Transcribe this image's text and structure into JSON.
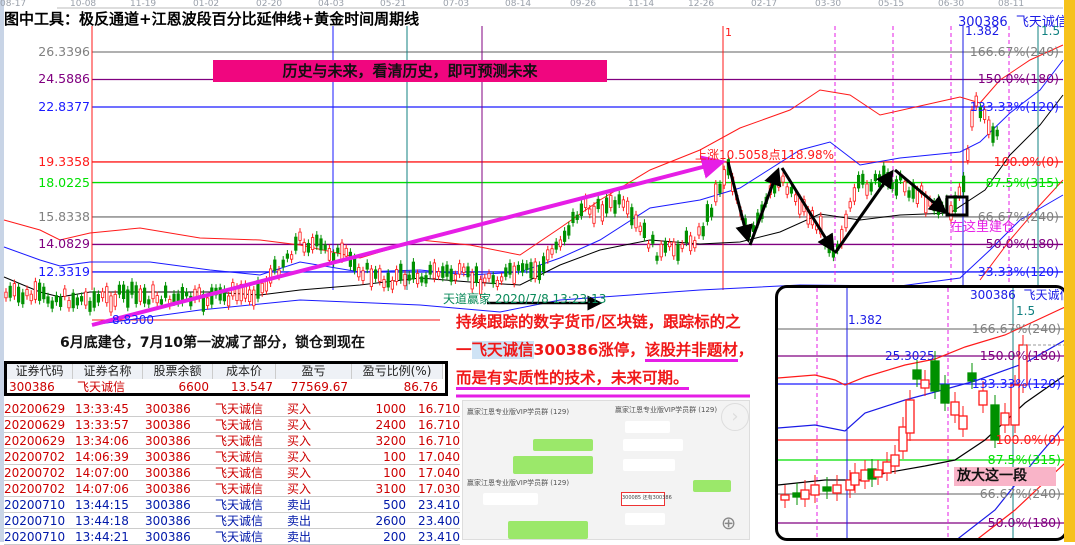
{
  "title": "图中工具：极反通道+江恩波段百分比延伸线+黄金时间周期线",
  "stock": {
    "code": "300386",
    "name": "飞天诚信",
    "color": "#1a1ae6"
  },
  "date_axis": [
    "08-17",
    "10-08",
    "11-19",
    "01-02",
    "02-20",
    "04-03",
    "05-21",
    "07-03",
    "08-14",
    "09-26",
    "11-14",
    "12-26",
    "02-17",
    "03-30",
    "05-15",
    "06-30",
    "08-11"
  ],
  "price_levels": [
    {
      "price": "26.3396",
      "pct": "166.67%(240)",
      "color": "#808080"
    },
    {
      "price": "24.5886",
      "pct": "150.0%(180)",
      "color": "#800080"
    },
    {
      "price": "22.8377",
      "pct": "133.33%(120)",
      "color": "#1a1aff"
    },
    {
      "price": "19.3358",
      "pct": "100.0%(0)",
      "color": "#ff1a1a"
    },
    {
      "price": "18.0225",
      "pct": "87.5%(315)",
      "color": "#00e000"
    },
    {
      "price": "15.8338",
      "pct": "66.67%(240)",
      "color": "#808080"
    },
    {
      "price": "14.0829",
      "pct": "50.0%(180)",
      "color": "#800080"
    },
    {
      "price": "12.3319",
      "pct": "33.33%(120)",
      "color": "#1a1aff"
    }
  ],
  "annotations": {
    "banner": "历史与未来，看清历史，即可预测未来",
    "rise": "上涨10.5058点118.98%",
    "low": "8.8300",
    "cycle1": "1",
    "cycle_1382": "1.382",
    "cycle_15": "1.5",
    "build_here": "在这里建仓",
    "watermark": "天道赢家 2020/7/8 13:23:13",
    "note": "6月底建仓，7月10第一波减了部分，锁仓到现在",
    "high_price": "25.3025",
    "zoom_label": "放大这一段"
  },
  "holding": {
    "headers": [
      "证券代码",
      "证券名称",
      "股票余额",
      "成本价",
      "盈亏",
      "盈亏比例(%)"
    ],
    "values": [
      "300386",
      "飞天诚信",
      "6600",
      "13.547",
      "77569.67",
      "86.76"
    ]
  },
  "trades": [
    {
      "date": "20200629",
      "time": "13:33:45",
      "code": "300386",
      "name": "飞天诚信",
      "side": "买入",
      "qty": "1000",
      "price": "16.710",
      "buy": true
    },
    {
      "date": "20200629",
      "time": "13:33:57",
      "code": "300386",
      "name": "飞天诚信",
      "side": "买入",
      "qty": "2400",
      "price": "16.710",
      "buy": true
    },
    {
      "date": "20200629",
      "time": "13:34:06",
      "code": "300386",
      "name": "飞天诚信",
      "side": "买入",
      "qty": "3200",
      "price": "16.710",
      "buy": true
    },
    {
      "date": "20200702",
      "time": "14:06:39",
      "code": "300386",
      "name": "飞天诚信",
      "side": "买入",
      "qty": "100",
      "price": "17.040",
      "buy": true
    },
    {
      "date": "20200702",
      "time": "14:07:00",
      "code": "300386",
      "name": "飞天诚信",
      "side": "买入",
      "qty": "100",
      "price": "17.040",
      "buy": true
    },
    {
      "date": "20200702",
      "time": "14:07:06",
      "code": "300386",
      "name": "飞天诚信",
      "side": "买入",
      "qty": "3100",
      "price": "17.030",
      "buy": true
    },
    {
      "date": "20200710",
      "time": "13:44:15",
      "code": "300386",
      "name": "飞天诚信",
      "side": "卖出",
      "qty": "500",
      "price": "23.410",
      "buy": false
    },
    {
      "date": "20200710",
      "time": "13:44:18",
      "code": "300386",
      "name": "飞天诚信",
      "side": "卖出",
      "qty": "2600",
      "price": "23.400",
      "buy": false
    },
    {
      "date": "20200710",
      "time": "13:44:21",
      "code": "300386",
      "name": "飞天诚信",
      "side": "卖出",
      "qty": "200",
      "price": "23.410",
      "buy": false
    }
  ],
  "commentary": {
    "line1": "持续跟踪的数字货币/区块链，跟踪标的之",
    "line2a": "一",
    "line2b": "飞天诚信",
    "line2c": "300386涨停，",
    "line2d": "该股并非题材",
    "line2e": "，",
    "line3": "而是有实质性的技术，未来可期。"
  },
  "chat": {
    "group1": "赢家江恩专业版VIP学员群 (129)",
    "group2": "赢家江恩专业版VIP学员群 (129)",
    "group3": "赢家江恩专业版VIP学员群 (129)",
    "highlight": "300085 还有300386"
  }
}
